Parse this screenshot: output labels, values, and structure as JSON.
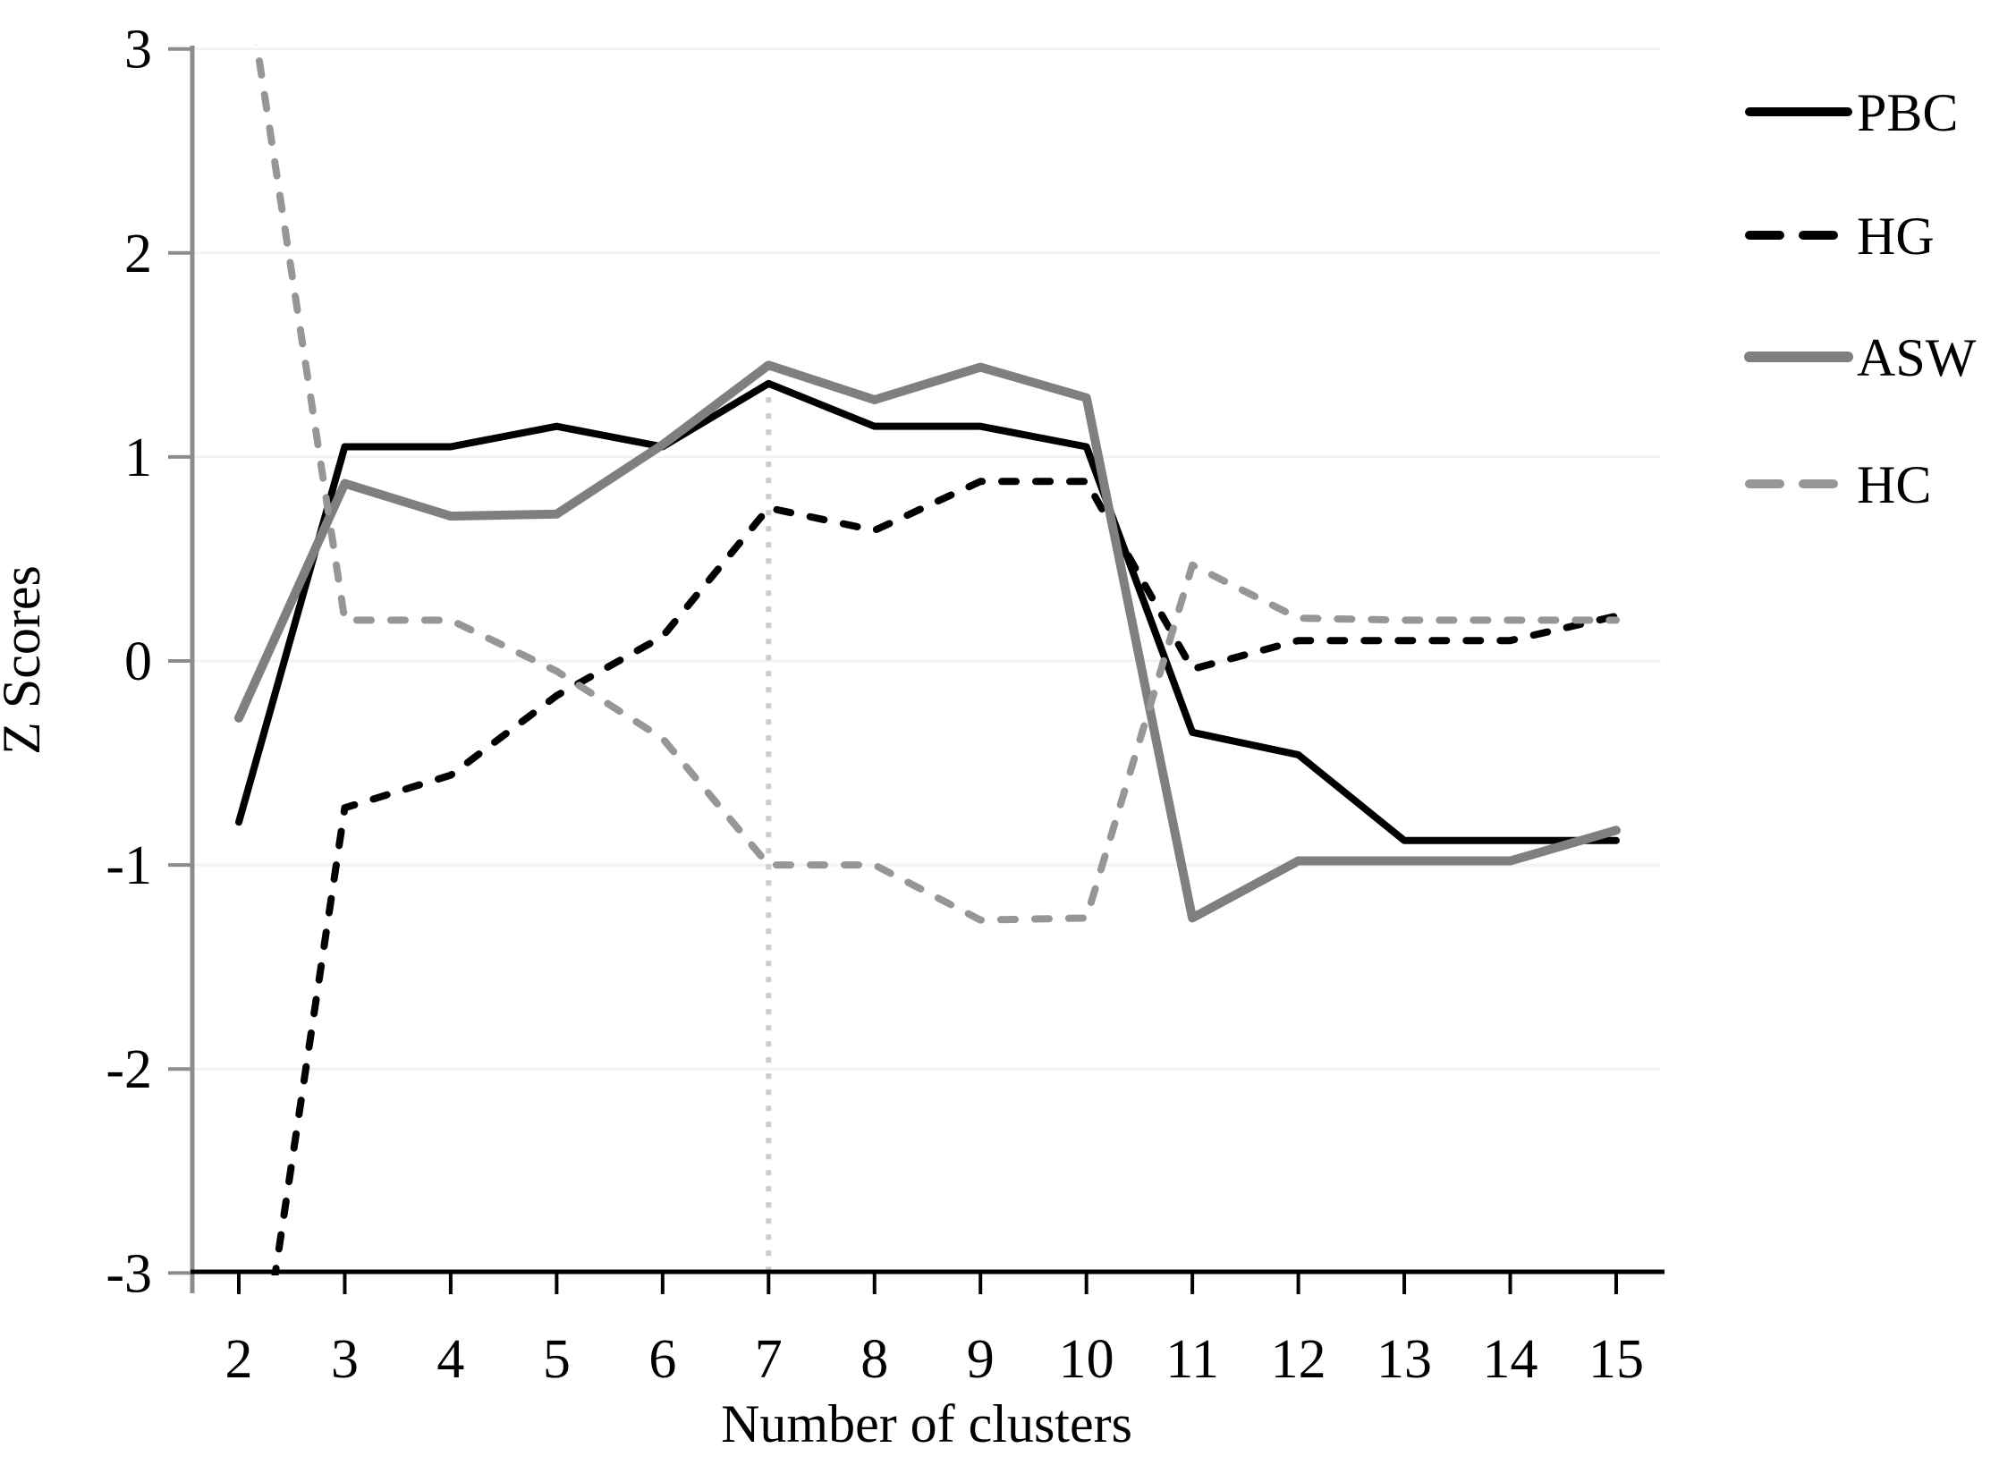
{
  "chart_data": {
    "type": "line",
    "title": "",
    "xlabel": "Number of clusters",
    "ylabel": "Z Scores",
    "x": [
      2,
      3,
      4,
      5,
      6,
      7,
      8,
      9,
      10,
      11,
      12,
      13,
      14,
      15
    ],
    "xlim": [
      2,
      15
    ],
    "ylim": [
      -3,
      3
    ],
    "y_ticks": [
      "3",
      "2",
      "1",
      "0",
      "-1",
      "-2",
      "-3"
    ],
    "y_tick_values": [
      3,
      2,
      1,
      0,
      -1,
      -2,
      -3
    ],
    "x_ticks": [
      "2",
      "3",
      "4",
      "5",
      "6",
      "7",
      "8",
      "9",
      "10",
      "11",
      "12",
      "13",
      "14",
      "15"
    ],
    "grid": "horizontal-light",
    "legend_position": "right-outside",
    "reference_line": {
      "type": "vertical-dotted",
      "x": 7,
      "from_y": 1.45,
      "to_y": -3
    },
    "series": [
      {
        "name": "PBC",
        "line_style": "solid",
        "color": "#000000",
        "stroke_width": 8,
        "values": [
          -0.79,
          1.05,
          1.05,
          1.15,
          1.05,
          1.36,
          1.15,
          1.15,
          1.05,
          -0.35,
          -0.46,
          -0.88,
          -0.88,
          -0.88
        ]
      },
      {
        "name": "HG",
        "line_style": "dashed",
        "color": "#000000",
        "stroke_width": 8,
        "values": [
          -4.2,
          -0.72,
          -0.56,
          -0.17,
          0.12,
          0.75,
          0.64,
          0.88,
          0.88,
          -0.04,
          0.1,
          0.1,
          0.1,
          0.22
        ]
      },
      {
        "name": "ASW",
        "line_style": "solid",
        "color": "#7f7f7f",
        "stroke_width": 10,
        "values": [
          -0.28,
          0.87,
          0.71,
          0.72,
          1.06,
          1.45,
          1.28,
          1.44,
          1.29,
          -1.26,
          -0.98,
          -0.98,
          -0.98,
          -0.83
        ]
      },
      {
        "name": "HC",
        "line_style": "dashed",
        "color": "#969696",
        "stroke_width": 8,
        "values": [
          3.6,
          0.2,
          0.2,
          -0.05,
          -0.38,
          -1.0,
          -1.0,
          -1.27,
          -1.26,
          0.47,
          0.21,
          0.2,
          0.2,
          0.2
        ]
      }
    ]
  },
  "colors": {
    "background": "#ffffff",
    "gridline": "#f2f2f2",
    "y_axis": "#8c8c8c",
    "x_axis": "#000000",
    "reference_line": "#cccccc",
    "text": "#000000"
  }
}
